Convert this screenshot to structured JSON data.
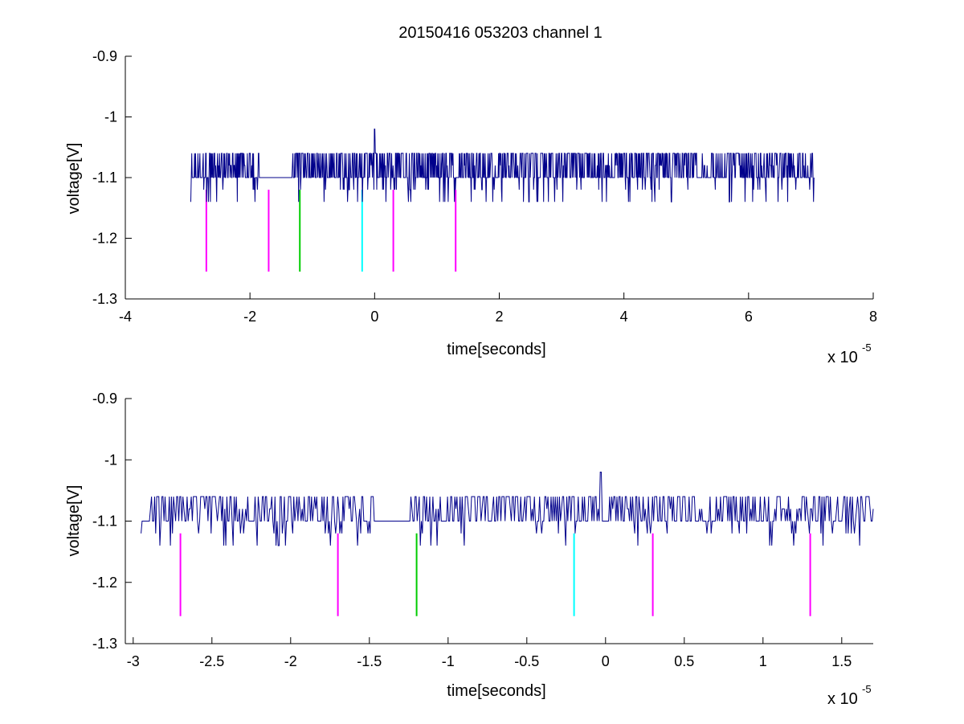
{
  "figure": {
    "title": "20150416 053203 channel 1",
    "colors": {
      "trace": "#00008B",
      "magenta": "#FF00FF",
      "green": "#00CC00",
      "cyan": "#00FFFF",
      "axis": "#000000",
      "background": "#FFFFFF"
    }
  },
  "chart_data": [
    {
      "type": "line",
      "title": "20150416 053203 channel 1",
      "xlabel": "time[seconds]",
      "ylabel": "voltage[V]",
      "x_exponent_label": "x 10",
      "x_exponent": "-5",
      "xlim": [
        -4,
        8
      ],
      "ylim": [
        -1.3,
        -0.9
      ],
      "xticks": [
        -4,
        -2,
        0,
        2,
        4,
        6,
        8
      ],
      "xtick_labels": [
        "-4",
        "-2",
        "0",
        "2",
        "4",
        "6",
        "8"
      ],
      "yticks": [
        -0.9,
        -1,
        -1.1,
        -1.2,
        -1.3
      ],
      "ytick_labels": [
        "-0.9",
        "-1",
        "-1.1",
        "-1.2",
        "-1.3"
      ],
      "grid": false,
      "series": [
        {
          "x_range": [
            -2.95,
            7.05
          ],
          "baseline": -1.1,
          "levels": [
            -1.14,
            -1.12,
            -1.1,
            -1.08,
            -1.06
          ],
          "peak": {
            "x": 0.0,
            "y": -1.02
          },
          "quiet_segments": [
            [
              -1.85,
              -1.35
            ]
          ]
        }
      ],
      "markers": [
        {
          "x": -2.7,
          "y_range": [
            -1.255,
            -1.12
          ],
          "color": "magenta"
        },
        {
          "x": -1.7,
          "y_range": [
            -1.255,
            -1.12
          ],
          "color": "magenta"
        },
        {
          "x": -1.2,
          "y_range": [
            -1.255,
            -1.12
          ],
          "color": "green"
        },
        {
          "x": -0.2,
          "y_range": [
            -1.255,
            -1.12
          ],
          "color": "cyan"
        },
        {
          "x": 0.3,
          "y_range": [
            -1.255,
            -1.12
          ],
          "color": "magenta"
        },
        {
          "x": 1.3,
          "y_range": [
            -1.255,
            -1.12
          ],
          "color": "magenta"
        }
      ]
    },
    {
      "type": "line",
      "xlabel": "time[seconds]",
      "ylabel": "voltage[V]",
      "x_exponent_label": "x 10",
      "x_exponent": "-5",
      "xlim": [
        -3.05,
        1.7
      ],
      "ylim": [
        -1.3,
        -0.9
      ],
      "xticks": [
        -3,
        -2.5,
        -2,
        -1.5,
        -1,
        -0.5,
        0,
        0.5,
        1,
        1.5
      ],
      "xtick_labels": [
        "-3",
        "-2.5",
        "-2",
        "-1.5",
        "-1",
        "-0.5",
        "0",
        "0.5",
        "1",
        "1.5"
      ],
      "yticks": [
        -0.9,
        -1,
        -1.1,
        -1.2,
        -1.3
      ],
      "ytick_labels": [
        "-0.9",
        "-1",
        "-1.1",
        "-1.2",
        "-1.3"
      ],
      "grid": false,
      "series": [
        {
          "x_range": [
            -2.95,
            1.7
          ],
          "baseline": -1.1,
          "levels": [
            -1.14,
            -1.12,
            -1.1,
            -1.08,
            -1.06
          ],
          "peak": {
            "x": -0.03,
            "y": -1.02
          },
          "quiet_segments": [
            [
              -1.45,
              -1.25
            ]
          ]
        }
      ],
      "markers": [
        {
          "x": -2.7,
          "y_range": [
            -1.255,
            -1.12
          ],
          "color": "magenta"
        },
        {
          "x": -1.7,
          "y_range": [
            -1.255,
            -1.12
          ],
          "color": "magenta"
        },
        {
          "x": -1.2,
          "y_range": [
            -1.255,
            -1.12
          ],
          "color": "green"
        },
        {
          "x": -0.2,
          "y_range": [
            -1.255,
            -1.12
          ],
          "color": "cyan"
        },
        {
          "x": 0.3,
          "y_range": [
            -1.255,
            -1.12
          ],
          "color": "magenta"
        },
        {
          "x": 1.3,
          "y_range": [
            -1.255,
            -1.12
          ],
          "color": "magenta"
        }
      ]
    }
  ]
}
